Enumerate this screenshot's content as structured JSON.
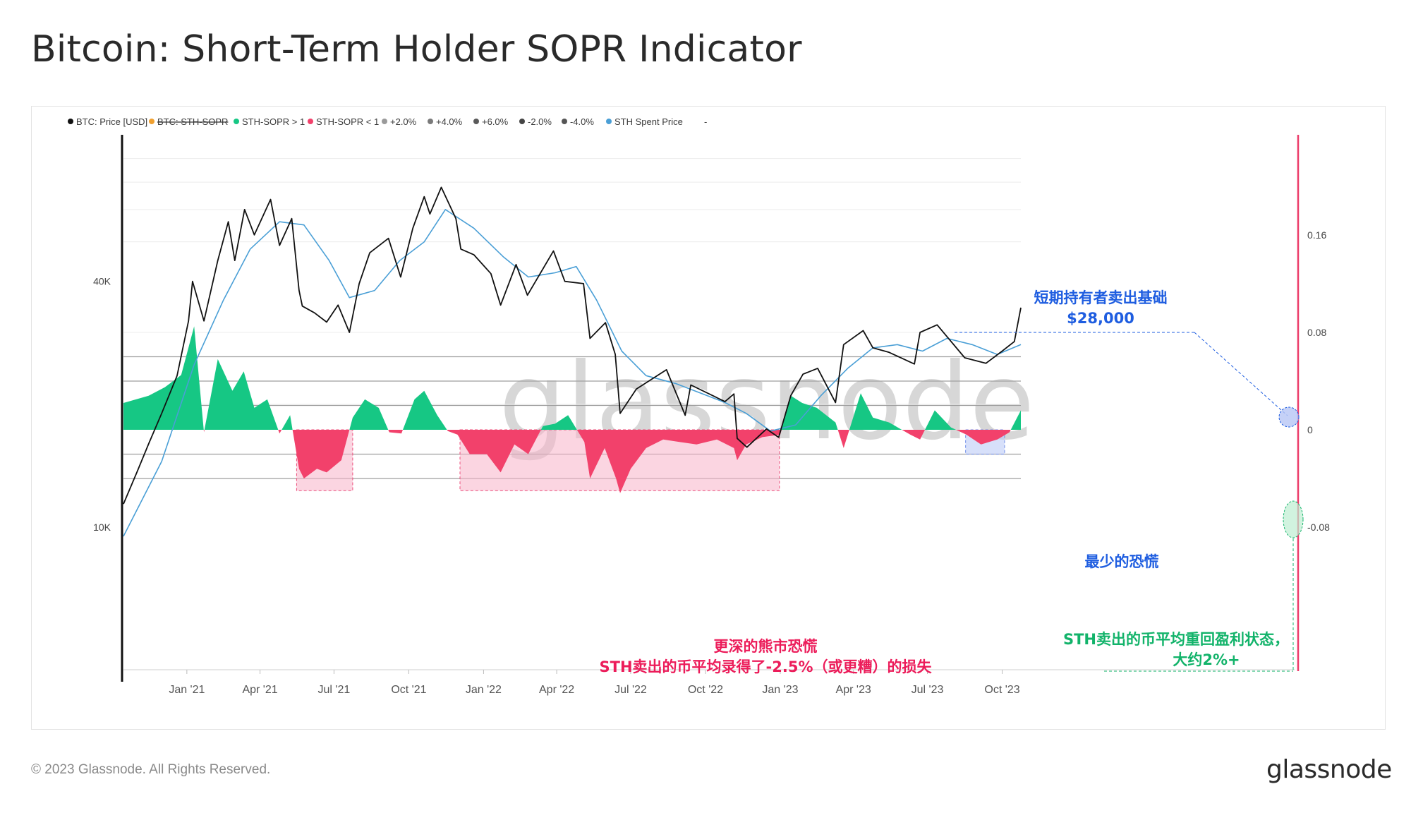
{
  "page": {
    "title": "Bitcoin: Short-Term Holder SOPR Indicator",
    "copyright": "© 2023 Glassnode. All Rights Reserved.",
    "logo": "glassnode",
    "watermark": "glassnode"
  },
  "chart_data": {
    "type": "line",
    "legend": [
      {
        "label": "BTC: Price [USD]",
        "color": "#111111",
        "struck": false
      },
      {
        "label": "BTC: STH-SOPR",
        "color": "#f0a030",
        "struck": true
      },
      {
        "label": "STH-SOPR > 1",
        "color": "#16c784",
        "struck": false
      },
      {
        "label": "STH-SOPR < 1",
        "color": "#f2416b",
        "struck": false
      },
      {
        "label": "+2.0%",
        "color": "#9a9a9a",
        "struck": false
      },
      {
        "label": "+4.0%",
        "color": "#7a7a7a",
        "struck": false
      },
      {
        "label": "+6.0%",
        "color": "#5a5a5a",
        "struck": false
      },
      {
        "label": "-2.0%",
        "color": "#444444",
        "struck": false
      },
      {
        "label": "-4.0%",
        "color": "#555555",
        "struck": false
      },
      {
        "label": "STH Spent Price",
        "color": "#4a9fd6",
        "struck": false
      },
      {
        "label": "-",
        "color": "#ffffff",
        "struck": false
      }
    ],
    "x_ticks": [
      "Jan '21",
      "Apr '21",
      "Jul '21",
      "Oct '21",
      "Jan '22",
      "Apr '22",
      "Jul '22",
      "Oct '22",
      "Jan '23",
      "Apr '23",
      "Jul '23",
      "Oct '23"
    ],
    "x_tick_dates": [
      "2021-01-01",
      "2021-04-01",
      "2021-07-01",
      "2021-10-01",
      "2022-01-01",
      "2022-04-01",
      "2022-07-01",
      "2022-10-01",
      "2023-01-01",
      "2023-04-01",
      "2023-07-01",
      "2023-10-01"
    ],
    "x_range": [
      "2020-10-15",
      "2023-10-24"
    ],
    "y_left": {
      "scale": "log",
      "ticks": [
        "40K",
        "10K"
      ],
      "tick_values": [
        40000,
        10000
      ],
      "range": [
        10000,
        90000
      ]
    },
    "y_right": {
      "ticks": [
        "0.16",
        "0.08",
        "0",
        "-0.08"
      ],
      "tick_values": [
        0.16,
        0.08,
        0,
        -0.08
      ],
      "range": [
        -0.08,
        0.24
      ]
    },
    "threshold_lines": [
      0.06,
      0.04,
      0.02,
      -0.02,
      -0.04
    ],
    "series": [
      {
        "name": "BTC: Price [USD]",
        "color": "#111111",
        "x": [
          "2020-10-15",
          "2020-11-01",
          "2020-11-15",
          "2020-12-01",
          "2020-12-20",
          "2021-01-03",
          "2021-01-08",
          "2021-01-22",
          "2021-02-08",
          "2021-02-21",
          "2021-03-01",
          "2021-03-13",
          "2021-03-25",
          "2021-04-14",
          "2021-04-25",
          "2021-05-10",
          "2021-05-19",
          "2021-05-23",
          "2021-06-07",
          "2021-06-22",
          "2021-07-06",
          "2021-07-20",
          "2021-08-01",
          "2021-08-14",
          "2021-09-06",
          "2021-09-21",
          "2021-10-06",
          "2021-10-20",
          "2021-10-27",
          "2021-11-10",
          "2021-11-28",
          "2021-12-04",
          "2021-12-20",
          "2022-01-10",
          "2022-01-22",
          "2022-02-10",
          "2022-02-24",
          "2022-03-28",
          "2022-04-11",
          "2022-05-04",
          "2022-05-12",
          "2022-05-31",
          "2022-06-12",
          "2022-06-18",
          "2022-07-08",
          "2022-08-14",
          "2022-09-06",
          "2022-09-13",
          "2022-10-25",
          "2022-11-05",
          "2022-11-09",
          "2022-11-21",
          "2022-12-15",
          "2022-12-30",
          "2023-01-14",
          "2023-01-29",
          "2023-02-16",
          "2023-03-10",
          "2023-03-20",
          "2023-04-13",
          "2023-04-25",
          "2023-05-15",
          "2023-06-15",
          "2023-06-22",
          "2023-07-13",
          "2023-08-16",
          "2023-09-11",
          "2023-10-01",
          "2023-10-16",
          "2023-10-24"
        ],
        "values": [
          11400,
          13700,
          16000,
          19000,
          23500,
          32000,
          40000,
          32000,
          45000,
          56000,
          45000,
          60000,
          52000,
          63500,
          49000,
          57000,
          38000,
          34800,
          33500,
          31800,
          35000,
          30000,
          39500,
          47000,
          51000,
          41000,
          54000,
          64500,
          58500,
          68000,
          57000,
          48000,
          46500,
          41800,
          35000,
          44000,
          37000,
          47500,
          40000,
          39500,
          29000,
          31700,
          26500,
          19000,
          21800,
          24300,
          18800,
          22300,
          20300,
          21200,
          16500,
          15700,
          17400,
          16600,
          21000,
          23700,
          24500,
          20200,
          28000,
          30300,
          27500,
          26800,
          25100,
          30000,
          31300,
          26000,
          25200,
          27000,
          28500,
          34500
        ]
      },
      {
        "name": "STH Spent Price",
        "color": "#4a9fd6",
        "x": [
          "2020-10-15",
          "2020-12-01",
          "2021-01-10",
          "2021-02-15",
          "2021-03-20",
          "2021-04-25",
          "2021-05-25",
          "2021-06-25",
          "2021-07-20",
          "2021-08-20",
          "2021-09-20",
          "2021-10-20",
          "2021-11-15",
          "2021-12-20",
          "2022-01-25",
          "2022-02-25",
          "2022-03-30",
          "2022-04-25",
          "2022-05-20",
          "2022-06-20",
          "2022-07-20",
          "2022-08-25",
          "2022-09-25",
          "2022-10-25",
          "2022-11-20",
          "2022-12-20",
          "2023-01-20",
          "2023-02-20",
          "2023-03-25",
          "2023-04-25",
          "2023-05-25",
          "2023-06-25",
          "2023-07-25",
          "2023-08-25",
          "2023-09-25",
          "2023-10-24"
        ],
        "values": [
          9500,
          14500,
          25000,
          36000,
          48000,
          56000,
          55000,
          45000,
          36500,
          38000,
          45000,
          50000,
          60000,
          54000,
          46000,
          41000,
          42000,
          43500,
          36000,
          27000,
          23500,
          22500,
          21300,
          20200,
          19000,
          17200,
          17800,
          21000,
          24500,
          27500,
          28000,
          27000,
          29000,
          28000,
          26500,
          28000
        ]
      },
      {
        "name": "STH-SOPR > 1",
        "color": "#16c784"
      },
      {
        "name": "STH-SOPR < 1",
        "color": "#f2416b",
        "x": [
          "2020-10-15",
          "2020-11-15",
          "2020-12-05",
          "2020-12-25",
          "2021-01-10",
          "2021-01-22",
          "2021-02-08",
          "2021-02-26",
          "2021-03-12",
          "2021-03-25",
          "2021-04-10",
          "2021-04-25",
          "2021-05-08",
          "2021-05-19",
          "2021-05-25",
          "2021-06-10",
          "2021-06-22",
          "2021-07-10",
          "2021-07-24",
          "2021-08-08",
          "2021-08-25",
          "2021-09-07",
          "2021-09-22",
          "2021-10-08",
          "2021-10-20",
          "2021-11-05",
          "2021-11-18",
          "2021-11-30",
          "2021-12-15",
          "2022-01-05",
          "2022-01-22",
          "2022-02-08",
          "2022-02-25",
          "2022-03-15",
          "2022-03-30",
          "2022-04-15",
          "2022-05-05",
          "2022-05-12",
          "2022-05-30",
          "2022-06-13",
          "2022-06-18",
          "2022-07-01",
          "2022-07-20",
          "2022-08-10",
          "2022-08-30",
          "2022-09-20",
          "2022-10-15",
          "2022-11-05",
          "2022-11-09",
          "2022-11-20",
          "2022-12-10",
          "2023-01-01",
          "2023-01-14",
          "2023-01-28",
          "2023-02-15",
          "2023-03-10",
          "2023-03-20",
          "2023-04-10",
          "2023-04-25",
          "2023-05-15",
          "2023-06-10",
          "2023-06-22",
          "2023-07-10",
          "2023-07-30",
          "2023-08-18",
          "2023-09-05",
          "2023-09-25",
          "2023-10-10",
          "2023-10-24"
        ],
        "values": [
          0.022,
          0.028,
          0.035,
          0.045,
          0.085,
          -0.002,
          0.058,
          0.032,
          0.048,
          0.018,
          0.025,
          -0.003,
          0.012,
          -0.032,
          -0.04,
          -0.032,
          -0.035,
          -0.025,
          0.01,
          0.025,
          0.018,
          -0.002,
          -0.003,
          0.025,
          0.032,
          0.012,
          -0.001,
          -0.004,
          -0.02,
          -0.02,
          -0.035,
          -0.012,
          -0.02,
          0.003,
          0.005,
          0.012,
          -0.01,
          -0.04,
          -0.015,
          -0.04,
          -0.052,
          -0.032,
          -0.015,
          -0.008,
          -0.01,
          -0.012,
          -0.008,
          -0.015,
          -0.025,
          -0.012,
          -0.006,
          -0.004,
          0.028,
          0.022,
          0.018,
          0.006,
          -0.015,
          0.03,
          0.01,
          0.006,
          -0.004,
          -0.008,
          0.016,
          0.002,
          -0.004,
          -0.012,
          -0.008,
          -0.002,
          0.016
        ]
      }
    ],
    "zones": [
      {
        "label": "fear-2021",
        "start": "2021-05-16",
        "end": "2021-07-24",
        "top": 0,
        "bottom": -0.05,
        "color": "#f7b3c8"
      },
      {
        "label": "fear-2022",
        "start": "2021-12-03",
        "end": "2022-12-31",
        "top": 0,
        "bottom": -0.05,
        "color": "#f7b3c8"
      },
      {
        "label": "least-fear",
        "start": "2023-08-17",
        "end": "2023-10-04",
        "top": 0,
        "bottom": -0.02,
        "color": "#b7c6f5"
      }
    ],
    "annotations": {
      "support_title": "短期持有者卖出基础",
      "support_price": "$28,000",
      "least_fear": "最少的恐慌",
      "bear_fear_1": "更深的熊市恐慌",
      "bear_fear_2": "STH卖出的币平均录得了-2.5%（或更糟）的损失",
      "profit_1": "STH卖出的币平均重回盈利状态，",
      "profit_2": "大约2%+"
    }
  }
}
